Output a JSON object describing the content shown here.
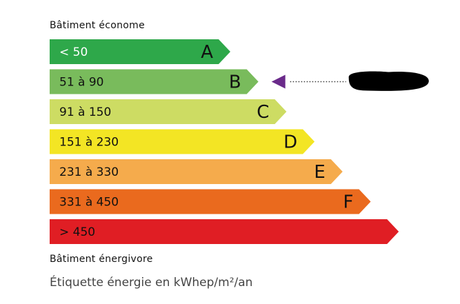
{
  "header": {
    "top_caption": "Bâtiment économe",
    "bottom_caption": "Bâtiment énergivore"
  },
  "footer": {
    "unit_label": "Étiquette énergie en kWhep/m²/an"
  },
  "classes": [
    {
      "range": "< 50",
      "letter": "A",
      "color": "#2ea84a",
      "text_color": "#ffffff"
    },
    {
      "range": "51 à 90",
      "letter": "B",
      "color": "#79bb5c",
      "text_color": "#111111"
    },
    {
      "range": "91 à 150",
      "letter": "C",
      "color": "#cddc63",
      "text_color": "#111111"
    },
    {
      "range": "151 à 230",
      "letter": "D",
      "color": "#f3e524",
      "text_color": "#111111"
    },
    {
      "range": "231 à 330",
      "letter": "E",
      "color": "#f5ab4c",
      "text_color": "#111111"
    },
    {
      "range": "331 à 450",
      "letter": "F",
      "color": "#ea6a1e",
      "text_color": "#111111"
    },
    {
      "range": "> 450",
      "letter": "",
      "color": "#e01e24",
      "text_color": "#111111"
    }
  ],
  "indicator": {
    "class": "B",
    "arrow_color": "#6a2a8a",
    "redacted": true
  }
}
